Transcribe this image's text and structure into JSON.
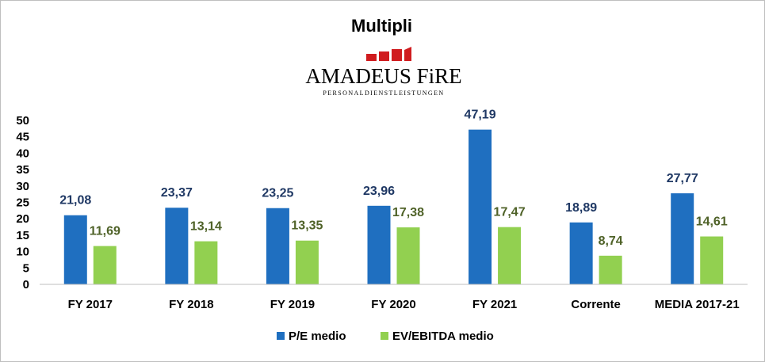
{
  "chart_data": {
    "type": "bar",
    "title": "Multipli",
    "categories": [
      "FY 2017",
      "FY 2018",
      "FY 2019",
      "FY 2020",
      "FY 2021",
      "Corrente",
      "MEDIA 2017-21"
    ],
    "series": [
      {
        "name": "P/E medio",
        "values": [
          21.08,
          23.37,
          23.25,
          23.96,
          47.19,
          18.89,
          27.77
        ],
        "labels": [
          "21,08",
          "23,37",
          "23,25",
          "23,96",
          "47,19",
          "18,89",
          "27,77"
        ],
        "color": "#1f6fc0",
        "label_color": "#1f3864"
      },
      {
        "name": "EV/EBITDA medio",
        "values": [
          11.69,
          13.14,
          13.35,
          17.38,
          17.47,
          8.74,
          14.61
        ],
        "labels": [
          "11,69",
          "13,14",
          "13,35",
          "17,38",
          "17,47",
          "8,74",
          "14,61"
        ],
        "color": "#92d050",
        "label_color": "#4f6228"
      }
    ],
    "ylim": [
      0,
      50
    ],
    "yticks": [
      "0",
      "5",
      "10",
      "15",
      "20",
      "25",
      "30",
      "35",
      "40",
      "45",
      "50"
    ],
    "grid": false,
    "legend": "bottom"
  },
  "logo": {
    "name": "AMADEUS FiRE",
    "tagline": "PERSONALDIENSTLEISTUNGEN",
    "color": "#d01c1f"
  }
}
